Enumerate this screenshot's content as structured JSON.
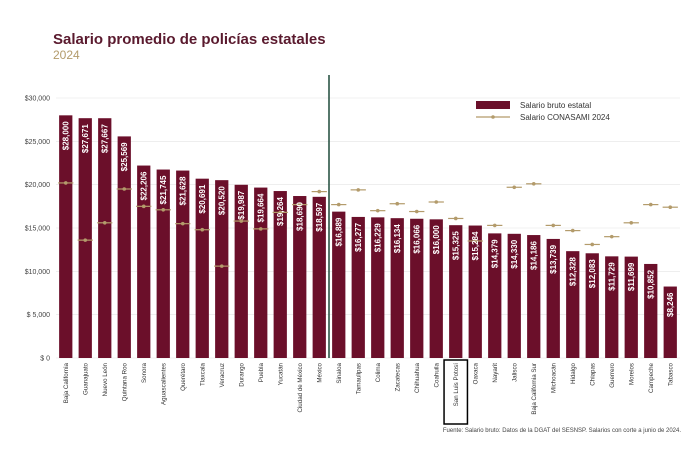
{
  "chart_data": {
    "type": "bar",
    "title": "Salario promedio de policías estatales",
    "subtitle": "2024",
    "categories": [
      "Baja California",
      "Guanajuato",
      "Nuevo León",
      "Quintana Roo",
      "Sonora",
      "Aguascalientes",
      "Querétaro",
      "Tlaxcala",
      "Veracruz",
      "Durango",
      "Puebla",
      "Yucatán",
      "Ciudad de México",
      "México",
      "Sinaloa",
      "Tamaulipas",
      "Colima",
      "Zacatecas",
      "Chihuahua",
      "Coahuila",
      "San Luis Potosí",
      "Oaxaca",
      "Nayarit",
      "Jalisco",
      "Baja California Sur",
      "Michoacán",
      "Hidalgo",
      "Chiapas",
      "Guerrero",
      "Morelos",
      "Campeche",
      "Tabasco"
    ],
    "series": [
      {
        "name": "Salario bruto estatal",
        "color": "#6b0f2a",
        "values": [
          28000,
          27671,
          27667,
          25569,
          22206,
          21745,
          21628,
          20691,
          20520,
          19987,
          19664,
          19264,
          18690,
          18597,
          16889,
          16277,
          16229,
          16134,
          16066,
          16000,
          15325,
          15284,
          14379,
          14330,
          14186,
          13739,
          12328,
          12083,
          11729,
          11699,
          10852,
          8246
        ],
        "labels": [
          "$28,000",
          "$27,671",
          "$27,667",
          "$25,569",
          "$22,206",
          "$21,745",
          "$21,628",
          "$20,691",
          "$20,520",
          "$19,987",
          "$19,664",
          "$19,264",
          "$18,690",
          "$18,597",
          "$16,889",
          "$16,277",
          "$16,229",
          "$16,134",
          "$16,066",
          "$16,000",
          "$15,325",
          "$15,284",
          "$14,379",
          "$14,330",
          "$14,186",
          "$13,739",
          "$12,328",
          "$12,083",
          "$11,729",
          "$11,699",
          "$10,852",
          "$8,246"
        ]
      },
      {
        "name": "Salario CONASAMI 2024",
        "color": "#b39b6b",
        "values": [
          20200,
          13600,
          15600,
          19500,
          17500,
          17100,
          15500,
          14800,
          10600,
          15800,
          14900,
          16800,
          17700,
          19200,
          17700,
          19400,
          17000,
          17800,
          16900,
          18000,
          16100,
          13500,
          15300,
          19700,
          20100,
          15300,
          14700,
          13100,
          14000,
          15600,
          17700,
          17400
        ]
      }
    ],
    "ylim": [
      0,
      30000
    ],
    "yticks": [
      0,
      5000,
      10000,
      15000,
      20000,
      25000,
      30000
    ],
    "ytick_labels": [
      "$ 0",
      "$ 5,000",
      "$10,000",
      "$15,000",
      "$20,000",
      "$25,000",
      "$30,000"
    ],
    "grid": true,
    "legend_position": "top-right",
    "divider_after_category": "México",
    "highlighted_category": "San Luis Potosí",
    "source": "Fuente: Salario bruto: Datos de la DGAT del SESNSP. Salarios con corte a junio de 2024."
  }
}
